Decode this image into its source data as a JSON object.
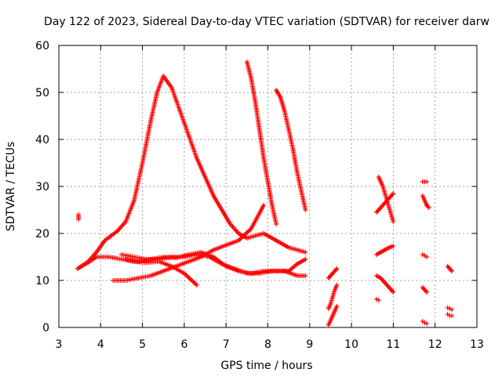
{
  "chart_data": {
    "type": "scatter",
    "title": "Day 122 of 2023, Sidereal Day-to-day VTEC variation (SDTVAR) for receiver darw",
    "xlabel": "GPS time / hours",
    "ylabel": "SDTVAR / TECUs",
    "xlim": [
      3,
      13
    ],
    "ylim": [
      0,
      60
    ],
    "xticks": [
      "3",
      "4",
      "5",
      "6",
      "7",
      "8",
      "9",
      "10",
      "11",
      "12",
      "13"
    ],
    "yticks": [
      "0",
      "10",
      "20",
      "30",
      "40",
      "50",
      "60"
    ],
    "grid": true,
    "marker": "+",
    "color": "#ff0000",
    "series": [
      {
        "name": "s1",
        "x": [
          3.45,
          3.7,
          3.9,
          4.1,
          4.4,
          4.6,
          4.8,
          5.0,
          5.2,
          5.35,
          5.5,
          5.7,
          5.9,
          6.1,
          6.3,
          6.5,
          6.7,
          6.9,
          7.1,
          7.3,
          7.5,
          7.7,
          7.9,
          8.1,
          8.3,
          8.5,
          8.7,
          8.9
        ],
        "y": [
          12.5,
          14,
          16,
          18.5,
          20.5,
          22.5,
          27,
          35,
          44,
          50,
          53.5,
          51,
          46,
          41,
          36,
          32,
          28,
          25,
          22,
          20,
          19,
          19.5,
          20,
          19,
          18,
          17,
          16.5,
          16
        ]
      },
      {
        "name": "s2",
        "x": [
          3.45,
          3.7,
          3.9,
          4.2,
          4.5,
          4.8,
          5.1,
          5.4,
          5.7,
          6.0,
          6.3
        ],
        "y": [
          12.5,
          13.8,
          15,
          15,
          14.5,
          14,
          13.8,
          14,
          13,
          11.5,
          9
        ]
      },
      {
        "name": "s3",
        "x": [
          4.3,
          4.6,
          4.9,
          5.2,
          5.5,
          5.8,
          6.1,
          6.4,
          6.7,
          7.0,
          7.3,
          7.6,
          7.9
        ],
        "y": [
          10,
          10,
          10.5,
          11,
          12,
          13,
          14,
          15,
          16.5,
          17.5,
          18.5,
          21,
          26
        ]
      },
      {
        "name": "s4",
        "x": [
          4.5,
          4.8,
          5.1,
          5.4,
          5.7,
          6.0,
          6.3,
          6.6,
          6.9,
          7.2,
          7.5,
          7.8,
          8.1,
          8.4,
          8.7,
          8.9
        ],
        "y": [
          15.5,
          15,
          14.5,
          14.5,
          15,
          15,
          15.5,
          15,
          13.5,
          12.5,
          11.5,
          11.5,
          12,
          12,
          11,
          11
        ]
      },
      {
        "name": "s5",
        "x": [
          4.6,
          4.9,
          5.2,
          5.5,
          5.8,
          6.1,
          6.4,
          6.7,
          7.0,
          7.3,
          7.6,
          7.9,
          8.2,
          8.5,
          8.7,
          8.9
        ],
        "y": [
          14.5,
          14,
          14.5,
          15,
          14.8,
          15.5,
          16,
          15,
          13,
          12,
          11.5,
          12,
          12,
          12,
          13.5,
          14.5
        ]
      },
      {
        "name": "s6",
        "x": [
          7.5,
          7.6,
          7.7,
          7.8,
          7.9,
          8.0,
          8.1,
          8.2
        ],
        "y": [
          56.5,
          53,
          48,
          42,
          36,
          31,
          26,
          22
        ]
      },
      {
        "name": "s7",
        "x": [
          8.2,
          8.3,
          8.4,
          8.5,
          8.6,
          8.7,
          8.8,
          8.9
        ],
        "y": [
          50.5,
          49,
          46,
          42,
          38,
          33,
          29,
          25
        ]
      },
      {
        "name": "s8",
        "x": [
          3.47,
          3.47
        ],
        "y": [
          23,
          24
        ]
      },
      {
        "name": "s9",
        "x": [
          9.45,
          9.5,
          9.55,
          9.6,
          9.65
        ],
        "y": [
          10.5,
          11,
          11.5,
          12,
          12.5
        ]
      },
      {
        "name": "s10",
        "x": [
          9.45,
          9.5,
          9.55,
          9.6,
          9.65
        ],
        "y": [
          4,
          5,
          6.5,
          8,
          9
        ]
      },
      {
        "name": "s11",
        "x": [
          9.45,
          9.5,
          9.55,
          9.6,
          9.65
        ],
        "y": [
          0.5,
          1.5,
          2.5,
          3.5,
          4.5
        ]
      },
      {
        "name": "s12",
        "x": [
          10.65,
          10.7,
          10.75,
          10.8,
          10.85,
          10.9,
          10.95,
          11.0
        ],
        "y": [
          32,
          31,
          30,
          28.5,
          27,
          25.5,
          24,
          22.5
        ]
      },
      {
        "name": "s13",
        "x": [
          10.6,
          10.7,
          10.8,
          10.9,
          10.95,
          11.0
        ],
        "y": [
          24.5,
          25.5,
          26.5,
          27.5,
          28,
          28.5
        ]
      },
      {
        "name": "s14",
        "x": [
          10.6,
          10.7,
          10.8,
          10.9,
          11.0
        ],
        "y": [
          15.5,
          16,
          16.5,
          17,
          17.3
        ]
      },
      {
        "name": "s15",
        "x": [
          10.6,
          10.7,
          10.8,
          10.9,
          11.0
        ],
        "y": [
          11,
          10.5,
          9.5,
          8.5,
          7.5
        ]
      },
      {
        "name": "s16",
        "x": [
          10.6,
          10.65
        ],
        "y": [
          6,
          5.8
        ]
      },
      {
        "name": "s17",
        "x": [
          11.7,
          11.75,
          11.8
        ],
        "y": [
          31,
          31,
          31
        ]
      },
      {
        "name": "s18",
        "x": [
          11.7,
          11.75,
          11.8,
          11.85
        ],
        "y": [
          28,
          27,
          26,
          25.5
        ]
      },
      {
        "name": "s19",
        "x": [
          11.7,
          11.75,
          11.8
        ],
        "y": [
          15.5,
          15.3,
          15
        ]
      },
      {
        "name": "s20",
        "x": [
          11.7,
          11.75,
          11.8
        ],
        "y": [
          8.5,
          8,
          7.5
        ]
      },
      {
        "name": "s21",
        "x": [
          11.7,
          11.75,
          11.8
        ],
        "y": [
          1.3,
          1,
          0.8
        ]
      },
      {
        "name": "s22",
        "x": [
          12.3,
          12.35,
          12.4
        ],
        "y": [
          13,
          12.5,
          12
        ]
      },
      {
        "name": "s23",
        "x": [
          12.3,
          12.35,
          12.4
        ],
        "y": [
          4.2,
          4,
          3.8
        ]
      },
      {
        "name": "s24",
        "x": [
          12.3,
          12.35,
          12.4
        ],
        "y": [
          2.8,
          2.5,
          2.5
        ]
      }
    ]
  }
}
